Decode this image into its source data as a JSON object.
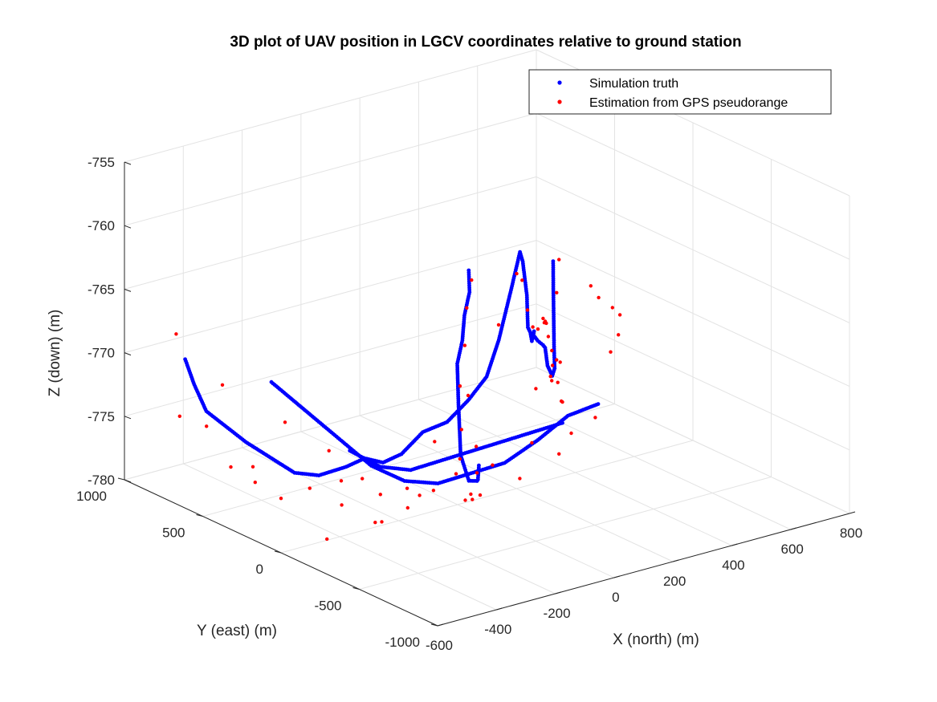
{
  "chart_data": {
    "type": "scatter",
    "title": "3D plot of UAV position in LGCV coordinates relative to ground station",
    "xlabel": "X (north) (m)",
    "ylabel": "Y (east) (m)",
    "zlabel": "Z (down) (m)",
    "xlim": [
      -600,
      800
    ],
    "ylim": [
      -1000,
      1000
    ],
    "zlim": [
      -780,
      -755
    ],
    "x_ticks": [
      "-600",
      "-400",
      "-200",
      "0",
      "200",
      "400",
      "600",
      "800"
    ],
    "y_ticks": [
      "-1000",
      "-500",
      "0",
      "500",
      "1000"
    ],
    "z_ticks": [
      "-780",
      "-775",
      "-770",
      "-765",
      "-760",
      "-755"
    ],
    "grid": true,
    "legend_position": "top-right",
    "series": [
      {
        "name": "Simulation truth",
        "color": "#0000ff",
        "marker": "dot",
        "note_trajectory": [
          [
            -500,
            800,
            -770
          ],
          [
            -480,
            780,
            -772
          ],
          [
            -460,
            740,
            -774
          ],
          [
            -400,
            600,
            -776
          ],
          [
            -360,
            520,
            -777
          ],
          [
            -320,
            440,
            -778
          ],
          [
            -280,
            360,
            -778
          ],
          [
            -240,
            260,
            -777
          ],
          [
            -220,
            180,
            -776
          ],
          [
            -200,
            100,
            -776
          ],
          [
            -180,
            20,
            -775
          ],
          [
            -150,
            -60,
            -773
          ],
          [
            -110,
            -140,
            -772
          ],
          [
            -80,
            -220,
            -770
          ],
          [
            -50,
            -280,
            -768
          ],
          [
            -30,
            -320,
            -765
          ],
          [
            -10,
            -360,
            -761
          ],
          [
            10,
            -380,
            -758
          ],
          [
            30,
            -360,
            -759
          ],
          [
            60,
            -330,
            -762
          ],
          [
            90,
            -280,
            -765
          ],
          [
            130,
            -220,
            -766
          ],
          [
            170,
            -150,
            -767
          ],
          [
            210,
            -80,
            -768
          ],
          [
            260,
            0,
            -768
          ],
          [
            300,
            80,
            -769
          ],
          [
            350,
            160,
            -770
          ],
          [
            400,
            240,
            -771
          ],
          [
            450,
            300,
            -772
          ],
          [
            500,
            380,
            -773
          ],
          [
            540,
            440,
            -775
          ],
          [
            580,
            500,
            -776
          ],
          [
            620,
            560,
            -777
          ],
          [
            660,
            620,
            -777
          ],
          [
            690,
            680,
            -776
          ],
          [
            710,
            720,
            -774
          ],
          [
            730,
            760,
            -772
          ],
          [
            740,
            780,
            -770
          ],
          [
            -300,
            -700,
            -771
          ],
          [
            -250,
            -600,
            -773
          ],
          [
            -200,
            -500,
            -774
          ],
          [
            -150,
            -380,
            -775
          ],
          [
            -100,
            -260,
            -776
          ],
          [
            -50,
            -140,
            -776
          ],
          [
            0,
            -20,
            -776
          ],
          [
            60,
            100,
            -775
          ],
          [
            120,
            220,
            -774
          ],
          [
            180,
            340,
            -772
          ],
          [
            240,
            420,
            -771
          ],
          [
            300,
            520,
            -770
          ],
          [
            360,
            600,
            -769
          ],
          [
            400,
            680,
            -768
          ],
          [
            -420,
            400,
            -770
          ],
          [
            -360,
            300,
            -772
          ],
          [
            -300,
            200,
            -774
          ],
          [
            -240,
            100,
            -776
          ],
          [
            -180,
            0,
            -777
          ],
          [
            -120,
            -100,
            -777
          ],
          [
            -60,
            -200,
            -776
          ],
          [
            0,
            -300,
            -775
          ],
          [
            60,
            -400,
            -773
          ],
          [
            120,
            -480,
            -771
          ],
          [
            180,
            -560,
            -770
          ],
          [
            -100,
            500,
            -778
          ],
          [
            -50,
            400,
            -779
          ],
          [
            0,
            300,
            -779
          ],
          [
            50,
            200,
            -778
          ],
          [
            100,
            100,
            -777
          ],
          [
            150,
            0,
            -776
          ],
          [
            200,
            -100,
            -775
          ],
          [
            250,
            -200,
            -774
          ]
        ]
      },
      {
        "name": "Estimation from GPS pseudorange",
        "color": "#ff0000",
        "marker": "dot",
        "note_points": [
          [
            -520,
            820,
            -768
          ],
          [
            -470,
            720,
            -775
          ],
          [
            -430,
            640,
            -778
          ],
          [
            -390,
            560,
            -779
          ],
          [
            -350,
            470,
            -780
          ],
          [
            -300,
            380,
            -779
          ],
          [
            -250,
            270,
            -780
          ],
          [
            -200,
            150,
            -781
          ],
          [
            -150,
            40,
            -778
          ],
          [
            -110,
            -60,
            -774
          ],
          [
            -60,
            -180,
            -770
          ],
          [
            -20,
            -300,
            -764
          ],
          [
            20,
            -340,
            -760
          ],
          [
            60,
            -300,
            -761
          ],
          [
            110,
            -240,
            -764
          ],
          [
            160,
            -180,
            -766
          ],
          [
            220,
            -100,
            -767
          ],
          [
            280,
            -20,
            -767
          ],
          [
            330,
            60,
            -768
          ],
          [
            380,
            160,
            -769
          ],
          [
            440,
            260,
            -770
          ],
          [
            500,
            360,
            -772
          ],
          [
            560,
            450,
            -774
          ],
          [
            610,
            540,
            -776
          ],
          [
            660,
            600,
            -778
          ],
          [
            700,
            660,
            -777
          ],
          [
            720,
            720,
            -772
          ],
          [
            760,
            780,
            -770
          ],
          [
            -280,
            -650,
            -772
          ],
          [
            -200,
            -520,
            -775
          ],
          [
            -120,
            -320,
            -777
          ],
          [
            -40,
            -160,
            -778
          ],
          [
            40,
            60,
            -777
          ],
          [
            120,
            200,
            -776
          ],
          [
            200,
            360,
            -774
          ],
          [
            280,
            480,
            -772
          ],
          [
            340,
            580,
            -770
          ],
          [
            420,
            700,
            -769
          ],
          [
            -400,
            350,
            -773
          ],
          [
            -320,
            220,
            -775
          ],
          [
            -260,
            120,
            -777
          ],
          [
            -180,
            -20,
            -779
          ],
          [
            -80,
            -200,
            -778
          ],
          [
            20,
            -360,
            -776
          ],
          [
            100,
            -460,
            -774
          ],
          [
            170,
            -560,
            -771
          ],
          [
            -140,
            480,
            -780
          ],
          [
            -60,
            380,
            -781
          ],
          [
            20,
            280,
            -781
          ],
          [
            80,
            160,
            -779
          ],
          [
            140,
            40,
            -778
          ],
          [
            210,
            -80,
            -776
          ],
          [
            280,
            -200,
            -775
          ],
          [
            380,
            120,
            -773
          ],
          [
            480,
            300,
            -775
          ],
          [
            580,
            420,
            -778
          ],
          [
            640,
            540,
            -779
          ],
          [
            -480,
            600,
            -771
          ],
          [
            -540,
            760,
            -774
          ],
          [
            -440,
            480,
            -777
          ],
          [
            -380,
            120,
            -781
          ],
          [
            -300,
            -80,
            -779
          ],
          [
            -220,
            -260,
            -776
          ],
          [
            -160,
            -420,
            -772
          ],
          [
            0,
            -500,
            -768
          ],
          [
            60,
            -520,
            -766
          ],
          [
            240,
            -400,
            -762
          ],
          [
            320,
            -300,
            -764
          ],
          [
            420,
            -200,
            -766
          ],
          [
            520,
            -60,
            -768
          ],
          [
            600,
            100,
            -771
          ],
          [
            680,
            300,
            -774
          ]
        ]
      }
    ]
  }
}
